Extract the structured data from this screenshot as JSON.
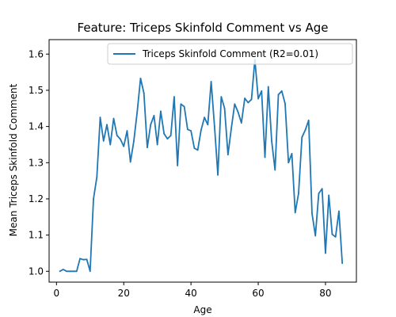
{
  "chart_data": {
    "type": "line",
    "title": "Feature: Triceps Skinfold Comment vs Age",
    "xlabel": "Age",
    "ylabel": "Mean Triceps Skinfold Comment",
    "xlim": [
      -2.2,
      89.2
    ],
    "ylim": [
      0.97,
      1.64
    ],
    "x_ticks": [
      0,
      20,
      40,
      60,
      80
    ],
    "y_ticks": [
      1.0,
      1.1,
      1.2,
      1.3,
      1.4,
      1.5,
      1.6
    ],
    "x_tick_labels": [
      "0",
      "20",
      "40",
      "60",
      "80"
    ],
    "y_tick_labels": [
      "1.0",
      "1.1",
      "1.2",
      "1.3",
      "1.4",
      "1.5",
      "1.6"
    ],
    "grid": false,
    "legend_position": "top-right",
    "series": [
      {
        "name": "Triceps Skinfold Comment (R2=0.01)",
        "color": "#1f77b4",
        "x": [
          1,
          2,
          3,
          4,
          5,
          6,
          7,
          8,
          9,
          10,
          11,
          12,
          13,
          14,
          15,
          16,
          17,
          18,
          19,
          20,
          21,
          22,
          23,
          24,
          25,
          26,
          27,
          28,
          29,
          30,
          31,
          32,
          33,
          34,
          35,
          36,
          37,
          38,
          39,
          40,
          41,
          42,
          43,
          44,
          45,
          46,
          47,
          48,
          49,
          50,
          51,
          52,
          53,
          54,
          55,
          56,
          57,
          58,
          59,
          60,
          61,
          62,
          63,
          64,
          65,
          66,
          67,
          68,
          69,
          70,
          71,
          72,
          73,
          74,
          75,
          76,
          77,
          78,
          79,
          80,
          81,
          82,
          83,
          84,
          85
        ],
        "y": [
          1.0,
          1.005,
          1.0,
          1.0,
          1.0,
          1.0,
          1.035,
          1.032,
          1.033,
          1.0,
          1.2,
          1.26,
          1.425,
          1.36,
          1.405,
          1.35,
          1.422,
          1.375,
          1.365,
          1.345,
          1.388,
          1.302,
          1.36,
          1.44,
          1.533,
          1.492,
          1.342,
          1.405,
          1.43,
          1.35,
          1.442,
          1.38,
          1.366,
          1.375,
          1.482,
          1.292,
          1.462,
          1.455,
          1.392,
          1.388,
          1.34,
          1.335,
          1.39,
          1.425,
          1.405,
          1.524,
          1.4,
          1.266,
          1.482,
          1.45,
          1.322,
          1.395,
          1.462,
          1.44,
          1.41,
          1.478,
          1.466,
          1.475,
          1.585,
          1.477,
          1.498,
          1.315,
          1.51,
          1.36,
          1.28,
          1.488,
          1.498,
          1.463,
          1.3,
          1.325,
          1.162,
          1.215,
          1.37,
          1.39,
          1.417,
          1.16,
          1.098,
          1.215,
          1.228,
          1.05,
          1.21,
          1.102,
          1.095,
          1.166,
          1.022
        ]
      }
    ]
  }
}
